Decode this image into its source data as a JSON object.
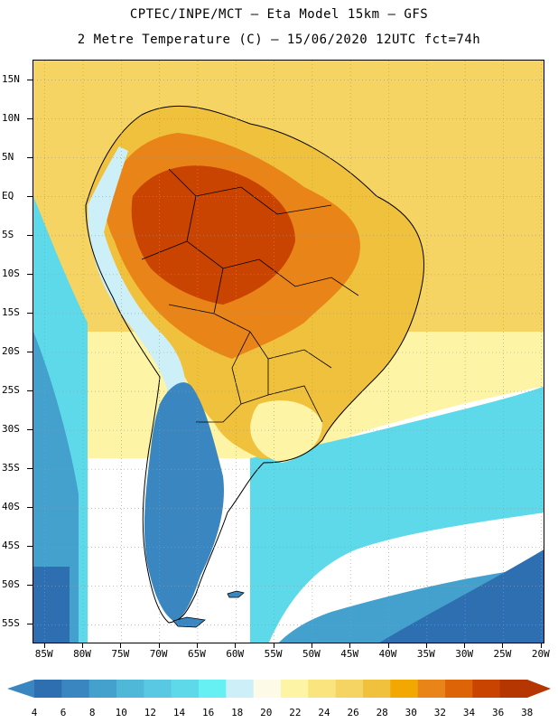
{
  "title_line1": "CPTEC/INPE/MCT –  Eta Model 15km – GFS",
  "title_line2": "2 Metre Temperature (C) – 15/06/2020 12UTC fct=74h",
  "lat_labels": [
    "15N",
    "10N",
    "5N",
    "EQ",
    "5S",
    "10S",
    "15S",
    "20S",
    "25S",
    "30S",
    "35S",
    "40S",
    "45S",
    "50S",
    "55S"
  ],
  "lon_labels": [
    "85W",
    "80W",
    "75W",
    "70W",
    "65W",
    "60W",
    "55W",
    "50W",
    "45W",
    "40W",
    "35W",
    "30W",
    "25W",
    "20W"
  ],
  "colorbar": {
    "labels": [
      "4",
      "6",
      "8",
      "10",
      "12",
      "14",
      "16",
      "18",
      "20",
      "22",
      "24",
      "26",
      "28",
      "30",
      "32",
      "34",
      "36",
      "38"
    ],
    "colors": [
      "#2d6fb0",
      "#3a86c0",
      "#44a0cc",
      "#4fb7d8",
      "#59c8e2",
      "#5ed9ea",
      "#66f0f4",
      "#cceff8",
      "#fdfbe8",
      "#fdf4a6",
      "#f9e47e",
      "#f5d463",
      "#f0c13d",
      "#f2a800",
      "#e98418",
      "#de6408",
      "#c94400",
      "#b53600"
    ],
    "lower_arrow_color": "#3a86c0",
    "upper_arrow_color": "#b53600"
  },
  "map_colors": {
    "ocean_north": "#f5d463",
    "ocean_mid": "#fdf4a6",
    "ocean_cool": "#5ed9ea",
    "ocean_cold": "#44a0cc",
    "ocean_coldest": "#2d6fb0",
    "land_hot": "#c94400",
    "land_warm": "#e98418",
    "land_mild": "#f0c13d",
    "andes": "#cceff8",
    "patagonia": "#3a86c0",
    "grid": "#999999",
    "border": "#000000"
  }
}
